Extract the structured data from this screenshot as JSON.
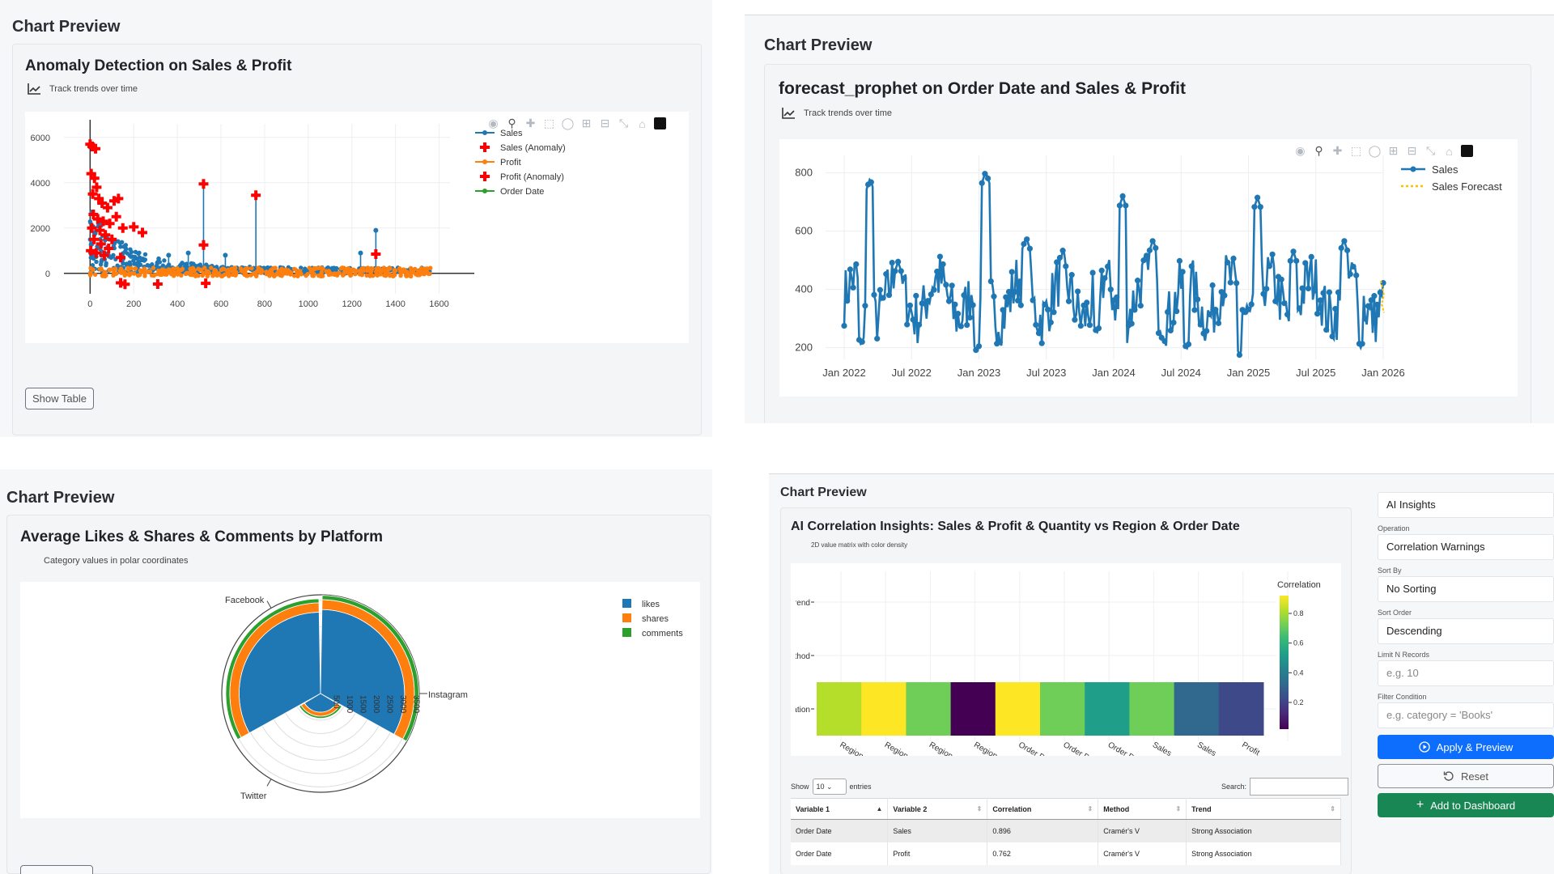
{
  "panels": {
    "q1": {
      "preview_title": "Chart Preview",
      "card_title": "Anomaly Detection on Sales & Profit",
      "subtitle": "Track trends over time",
      "show_table_label": "Show Table"
    },
    "q2": {
      "preview_title": "Chart Preview",
      "card_title": "forecast_prophet on Order Date and Sales & Profit",
      "subtitle": "Track trends over time"
    },
    "q3": {
      "preview_title": "Chart Preview",
      "card_title": "Average Likes & Shares & Comments by Platform",
      "subtitle": "Category values in polar coordinates"
    },
    "q4": {
      "preview_title": "Chart Preview",
      "card_title": "AI Correlation Insights: Sales & Profit & Quantity vs Region & Order Date",
      "subtitle": "2D value matrix with color density",
      "table": {
        "show_label": "Show",
        "entries_value": "10",
        "entries_label": "entries",
        "search_label": "Search:",
        "columns": [
          "Variable 1",
          "Variable 2",
          "Correlation",
          "Method",
          "Trend"
        ],
        "rows": [
          [
            "Order Date",
            "Sales",
            "0.896",
            "Cramér's V",
            "Strong Association"
          ],
          [
            "Order Date",
            "Profit",
            "0.762",
            "Cramér's V",
            "Strong Association"
          ]
        ]
      },
      "side_panel": {
        "analysis_value": "AI Insights",
        "operation_label": "Operation",
        "operation_value": "Correlation Warnings",
        "sort_by_label": "Sort By",
        "sort_by_value": "No Sorting",
        "sort_order_label": "Sort Order",
        "sort_order_value": "Descending",
        "limit_label": "Limit N Records",
        "limit_placeholder": "e.g. 10",
        "filter_label": "Filter Condition",
        "filter_placeholder": "e.g. category = 'Books'",
        "apply_label": "Apply & Preview",
        "reset_label": "Reset",
        "add_label": "Add to Dashboard"
      }
    }
  },
  "chart_data": [
    {
      "id": "anomaly",
      "type": "scatter",
      "title": "Anomaly Detection on Sales & Profit",
      "xlim": [
        -120,
        1650
      ],
      "ylim": [
        -900,
        6600
      ],
      "xticks": [
        0,
        200,
        400,
        600,
        800,
        1000,
        1200,
        1400,
        1600
      ],
      "yticks": [
        0,
        2000,
        4000,
        6000
      ],
      "legend": [
        "Sales",
        "Sales (Anomaly)",
        "Profit",
        "Profit (Anomaly)",
        "Order Date"
      ],
      "colors": {
        "sales": "#1f77b4",
        "anomaly": "#ff0000",
        "profit": "#ff7f0e",
        "order_date": "#2ca02c"
      },
      "sales_anomalies": [
        [
          0,
          5700
        ],
        [
          10,
          5600
        ],
        [
          25,
          5500
        ],
        [
          5,
          4400
        ],
        [
          20,
          4200
        ],
        [
          30,
          3800
        ],
        [
          12,
          3500
        ],
        [
          40,
          3300
        ],
        [
          55,
          3100
        ],
        [
          80,
          2900
        ],
        [
          110,
          3200
        ],
        [
          130,
          3300
        ],
        [
          15,
          2600
        ],
        [
          35,
          2400
        ],
        [
          60,
          2300
        ],
        [
          90,
          2200
        ],
        [
          120,
          2500
        ],
        [
          150,
          2000
        ],
        [
          200,
          2050
        ],
        [
          240,
          1800
        ],
        [
          520,
          3950
        ],
        [
          760,
          3450
        ],
        [
          8,
          2000
        ],
        [
          45,
          1900
        ],
        [
          70,
          1700
        ],
        [
          100,
          1500
        ],
        [
          18,
          1500
        ],
        [
          50,
          1300
        ],
        [
          85,
          1100
        ],
        [
          3,
          1000
        ],
        [
          28,
          900
        ],
        [
          65,
          800
        ],
        [
          140,
          700
        ],
        [
          520,
          1250
        ],
        [
          1310,
          850
        ]
      ],
      "profit_anomalies": [
        [
          140,
          -420
        ],
        [
          160,
          -480
        ],
        [
          310,
          -470
        ],
        [
          530,
          -440
        ]
      ],
      "sales_spikes": [
        [
          520,
          3950
        ],
        [
          760,
          3450
        ],
        [
          1310,
          1900
        ],
        [
          1240,
          900
        ],
        [
          620,
          800
        ],
        [
          450,
          900
        ],
        [
          360,
          800
        ]
      ]
    },
    {
      "id": "forecast",
      "type": "line",
      "title": "forecast_prophet on Order Date and Sales & Profit",
      "x_tick_labels": [
        "Jan 2022",
        "Jul 2022",
        "Jan 2023",
        "Jul 2023",
        "Jan 2024",
        "Jul 2024",
        "Jan 2025",
        "Jul 2025",
        "Jan 2026"
      ],
      "ylim": [
        160,
        860
      ],
      "yticks": [
        200,
        400,
        600,
        800
      ],
      "legend": [
        "Sales",
        "Sales Forecast"
      ],
      "colors": {
        "sales": "#1f77b4",
        "forecast": "#ffbf00"
      },
      "months_span": 48,
      "peaks": [
        [
          2.3,
          780
        ],
        [
          12.6,
          805
        ],
        [
          24.8,
          720
        ],
        [
          36.8,
          715
        ],
        [
          4.8,
          495
        ],
        [
          16.2,
          580
        ],
        [
          27.5,
          570
        ],
        [
          40.0,
          530
        ],
        [
          44.5,
          570
        ]
      ],
      "troughs": [
        [
          1.5,
          210
        ],
        [
          11.8,
          185
        ],
        [
          22.5,
          250
        ],
        [
          30.5,
          195
        ],
        [
          35.2,
          175
        ],
        [
          46.0,
          200
        ]
      ]
    },
    {
      "id": "polar",
      "type": "bar",
      "title": "Average Likes & Shares & Comments by Platform",
      "categories": [
        "Facebook",
        "Instagram",
        "Twitter"
      ],
      "series": [
        {
          "name": "likes",
          "color": "#1f77b4",
          "values": [
            3050,
            3150,
            700
          ]
        },
        {
          "name": "shares",
          "color": "#ff7f0e",
          "values": [
            350,
            370,
            150
          ]
        },
        {
          "name": "comments",
          "color": "#2ca02c",
          "values": [
            150,
            160,
            80
          ]
        }
      ],
      "radial_ticks": [
        500,
        1000,
        1500,
        2000,
        2500,
        3000,
        3500
      ],
      "rmax": 3700
    },
    {
      "id": "heatmap",
      "type": "heatmap",
      "title": "AI Correlation Insights: Sales & Profit & Quantity vs Region & Order Date",
      "y_labels": [
        "Trend",
        "Method",
        "Correlation"
      ],
      "x_labels": [
        "Region",
        "Region",
        "Region",
        "Region",
        "Order Date",
        "Order Date",
        "Order Date",
        "Sales",
        "Sales",
        "Profit"
      ],
      "values": [
        0.82,
        0.88,
        0.72,
        0.02,
        0.9,
        0.73,
        0.5,
        0.73,
        0.3,
        0.22
      ],
      "colorbar_title": "Correlation",
      "colorbar_ticks": [
        0.2,
        0.4,
        0.6,
        0.8
      ]
    }
  ]
}
